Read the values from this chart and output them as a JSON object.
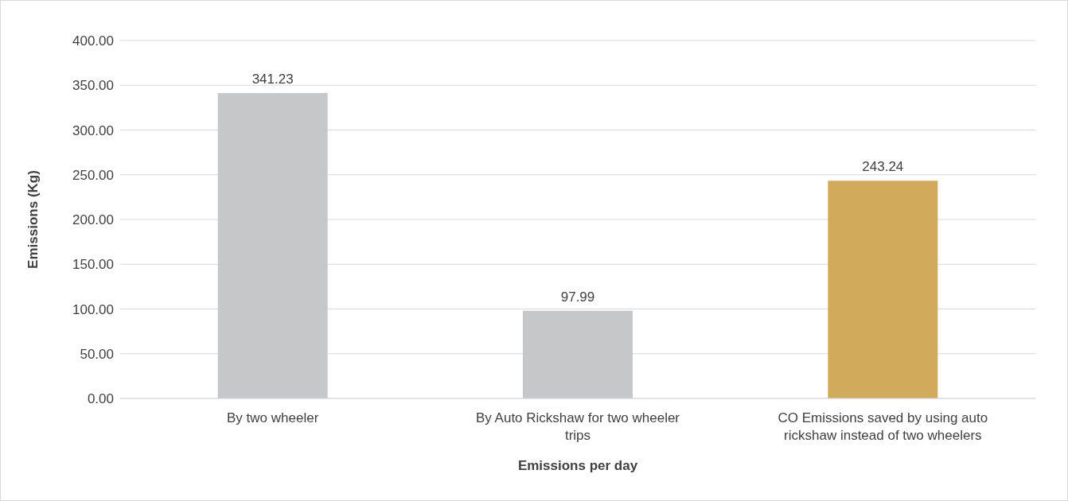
{
  "chart_data": {
    "type": "bar",
    "xlabel": "Emissions per day",
    "ylabel": "Emissions (Kg)",
    "categories": [
      "By two wheeler",
      "By Auto Rickshaw for two wheeler trips",
      "CO Emissions saved by using auto rickshaw instead of two wheelers"
    ],
    "values": [
      341.23,
      97.99,
      243.24
    ],
    "colors": [
      "#c6c7c9",
      "#c6c7c9",
      "#d1aa5b"
    ],
    "ylim": [
      0,
      400
    ],
    "yticks": [
      {
        "value": 0,
        "label": "0.00"
      },
      {
        "value": 50,
        "label": "50.00"
      },
      {
        "value": 100,
        "label": "100.00"
      },
      {
        "value": 150,
        "label": "150.00"
      },
      {
        "value": 200,
        "label": "200.00"
      },
      {
        "value": 250,
        "label": "250.00"
      },
      {
        "value": 300,
        "label": "300.00"
      },
      {
        "value": 350,
        "label": "350.00"
      },
      {
        "value": 400,
        "label": "400.00"
      }
    ],
    "grid": "y",
    "data_labels": true
  }
}
